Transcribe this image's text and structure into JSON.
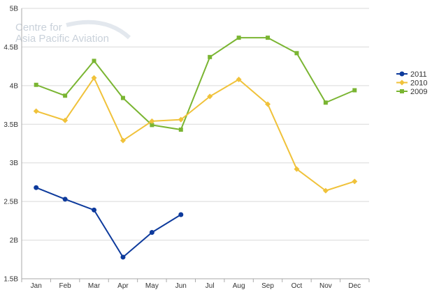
{
  "watermark": {
    "line1": "Centre for",
    "line2": "Asia Pacific Aviation"
  },
  "chart_data": {
    "type": "line",
    "categories": [
      "Jan",
      "Feb",
      "Mar",
      "Apr",
      "May",
      "Jun",
      "Jul",
      "Aug",
      "Sep",
      "Oct",
      "Nov",
      "Dec"
    ],
    "y_ticks": [
      "1.5B",
      "2B",
      "2.5B",
      "3B",
      "3.5B",
      "4B",
      "4.5B",
      "5B"
    ],
    "ylim": [
      1.5,
      5
    ],
    "y_unit": "B",
    "grid": true,
    "legend_position": "right",
    "series": [
      {
        "name": "2011",
        "color": "#0d3a9c",
        "marker": "circle",
        "values": [
          2.68,
          2.53,
          2.39,
          1.78,
          2.1,
          2.33,
          null,
          null,
          null,
          null,
          null,
          null
        ]
      },
      {
        "name": "2010",
        "color": "#f0c23a",
        "marker": "diamond",
        "values": [
          3.67,
          3.55,
          4.1,
          3.29,
          3.54,
          3.56,
          3.86,
          4.08,
          3.76,
          2.92,
          2.64,
          2.76
        ]
      },
      {
        "name": "2009",
        "color": "#7ab532",
        "marker": "square",
        "values": [
          4.01,
          3.87,
          4.32,
          3.84,
          3.49,
          3.43,
          4.37,
          4.62,
          4.62,
          4.42,
          3.78,
          3.94
        ]
      }
    ]
  }
}
